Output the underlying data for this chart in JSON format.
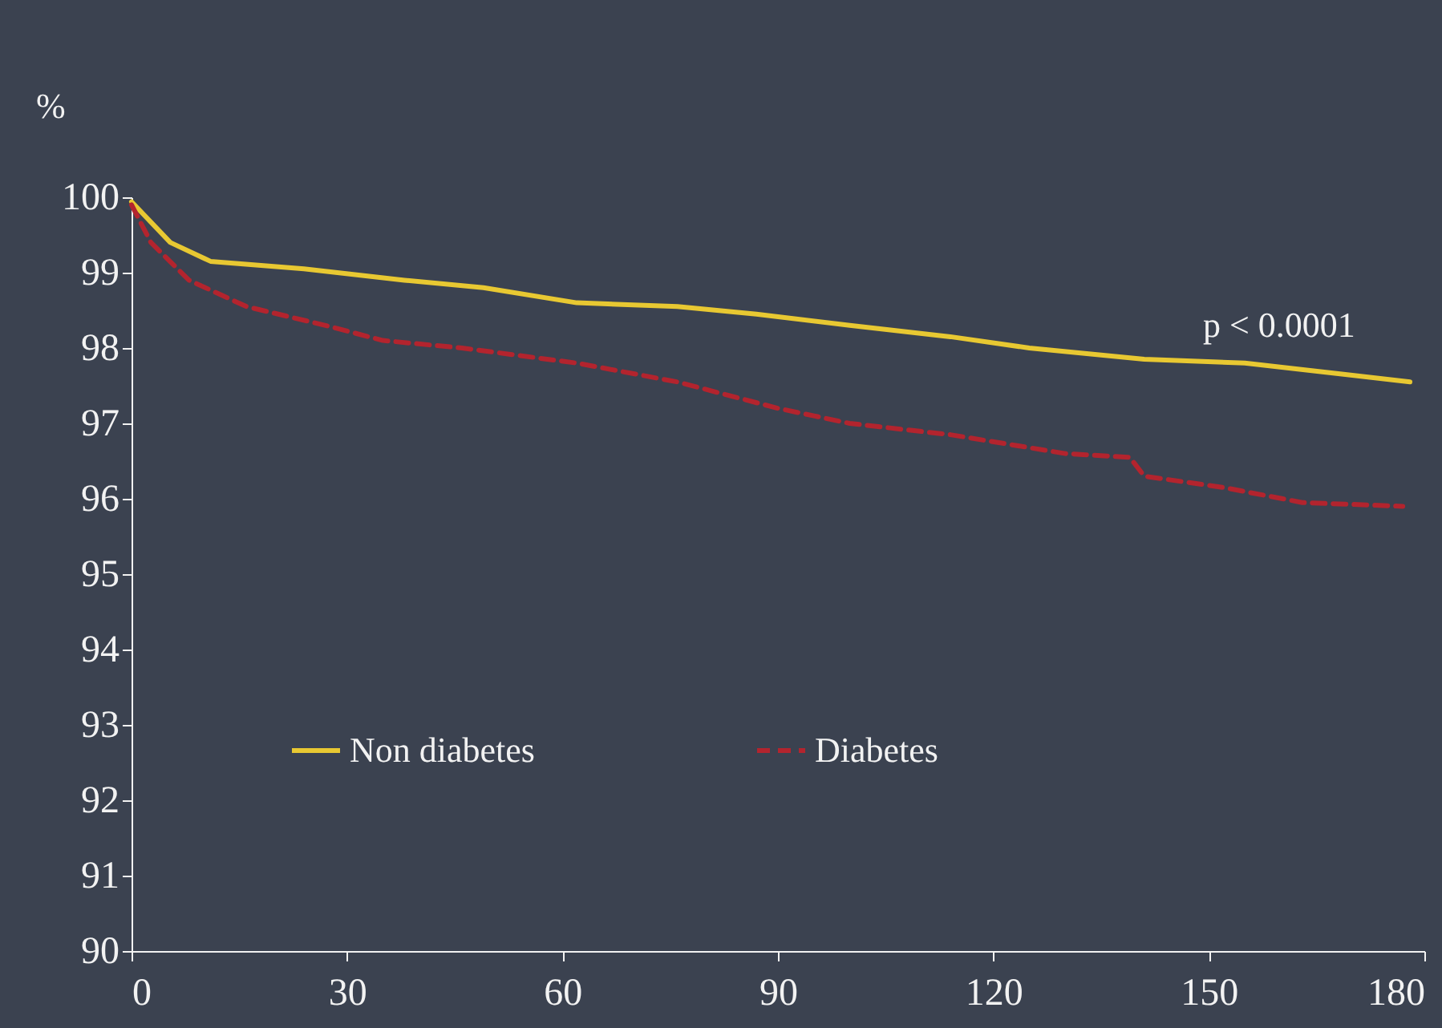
{
  "chart_data": {
    "type": "line",
    "ylabel": "%",
    "annotations": [
      "p < 0.0001"
    ],
    "xlim": [
      0,
      180
    ],
    "xticks": [
      0,
      30,
      60,
      90,
      120,
      150,
      180
    ],
    "ylim": [
      90,
      100
    ],
    "yticks": [
      90,
      91,
      92,
      93,
      94,
      95,
      96,
      97,
      98,
      99,
      100
    ],
    "grid": false,
    "legend": "bottom",
    "marker": "none",
    "series": [
      {
        "name": "Non diabetes",
        "color": "#e8c832",
        "line_style": "solid",
        "x": [
          0,
          5.4,
          11,
          24,
          38,
          49,
          62,
          76,
          87,
          100,
          114,
          125,
          141,
          155,
          169,
          178
        ],
        "values": [
          99.94,
          99.4,
          99.15,
          99.05,
          98.9,
          98.8,
          98.6,
          98.55,
          98.45,
          98.3,
          98.15,
          98.0,
          97.85,
          97.8,
          97.65,
          97.55
        ]
      },
      {
        "name": "Diabetes",
        "color": "#b3242e",
        "line_style": "dashed",
        "x": [
          0,
          2.7,
          8,
          16,
          27,
          35,
          46,
          62,
          76,
          90,
          100,
          114,
          130,
          139,
          141,
          152,
          163,
          177
        ],
        "values": [
          99.9,
          99.4,
          98.9,
          98.55,
          98.3,
          98.1,
          98.0,
          97.8,
          97.55,
          97.2,
          97.0,
          96.85,
          96.6,
          96.55,
          96.3,
          96.15,
          95.95,
          95.9
        ]
      }
    ]
  }
}
